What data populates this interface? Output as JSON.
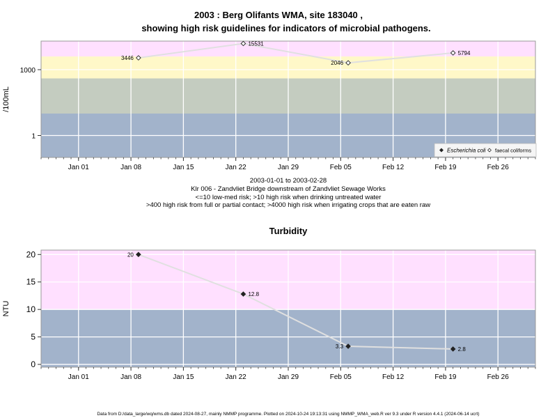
{
  "figure": {
    "title_line1": "2003 : Berg Olifants WMA, site 183040 ,",
    "title_line2": "showing high risk guidelines for indicators of microbial pathogens.",
    "caption_lines": [
      "2003-01-01 to 2003-02-28",
      "Klr 006 - Zandvliet Bridge downstream of Zandvliet Sewage Works",
      "<=10 low-med risk; >10 high risk when drinking untreated water",
      ">400 high risk from full or partial contact; >4000 high risk when irrigating crops that are eaten raw"
    ],
    "footer": "Data from D:/data_large/wq/wms.db dated 2024-08-27, mainly NMMP programme. Plotted on 2024-10-24 19:13:31 using NMMP_WMA_web.R ver 9.3 under R version 4.4.1 (2024-06-14 ucrt)"
  },
  "colors": {
    "pink": "#ffe0ff",
    "yellow": "#fff8c8",
    "grey_green": "#c4ccc0",
    "blue_grey": "#a2b3cb",
    "grid": "#ffffff",
    "line": "#e0e0e0"
  },
  "chart_data": [
    {
      "type": "scatter",
      "title": "2003 : Berg Olifants WMA, site 183040 , showing high risk guidelines for indicators of microbial pathogens.",
      "ylabel": "/100mL",
      "y_scale": "log",
      "ylim": [
        0.1,
        20000
      ],
      "xlim": [
        "2002-12-27",
        "2003-03-03"
      ],
      "x_ticks": [
        "Jan 01",
        "Jan 08",
        "Jan 15",
        "Jan 22",
        "Jan 29",
        "Feb 05",
        "Feb 12",
        "Feb 19",
        "Feb 26"
      ],
      "x_tick_dates": [
        "2003-01-01",
        "2003-01-08",
        "2003-01-15",
        "2003-01-22",
        "2003-01-29",
        "2003-02-05",
        "2003-02-12",
        "2003-02-19",
        "2003-02-26"
      ],
      "y_ticks": [
        1,
        1000
      ],
      "y_tick_labels": [
        "1",
        "1000"
      ],
      "bands": [
        {
          "from": 0.1,
          "to": 10,
          "color": "blue_grey"
        },
        {
          "from": 10,
          "to": 400,
          "color": "grey_green"
        },
        {
          "from": 400,
          "to": 4000,
          "color": "yellow"
        },
        {
          "from": 4000,
          "to": 20000,
          "color": "pink"
        }
      ],
      "legend_position": "bottom-right",
      "legend": [
        "Escherichia coli",
        "faecal coliforms"
      ],
      "series": [
        {
          "name": "faecal coliforms",
          "marker": "open-diamond",
          "x": [
            "2003-01-09",
            "2003-01-23",
            "2003-02-06",
            "2003-02-20"
          ],
          "values": [
            3446,
            15531,
            2046,
            5794
          ],
          "labels": [
            "3446",
            "15531",
            "2046",
            "5794"
          ],
          "label_side": [
            "left",
            "right",
            "left",
            "right"
          ]
        }
      ],
      "grid": true
    },
    {
      "type": "line",
      "title": "Turbidity",
      "ylabel": "NTU",
      "ylim": [
        -0.5,
        20.8
      ],
      "xlim": [
        "2002-12-27",
        "2003-03-03"
      ],
      "x_ticks": [
        "Jan 01",
        "Jan 08",
        "Jan 15",
        "Jan 22",
        "Jan 29",
        "Feb 05",
        "Feb 12",
        "Feb 19",
        "Feb 26"
      ],
      "x_tick_dates": [
        "2003-01-01",
        "2003-01-08",
        "2003-01-15",
        "2003-01-22",
        "2003-01-29",
        "2003-02-05",
        "2003-02-12",
        "2003-02-19",
        "2003-02-26"
      ],
      "y_ticks": [
        0,
        5,
        10,
        15,
        20
      ],
      "y_tick_labels": [
        "0",
        "5",
        "10",
        "15",
        "20"
      ],
      "bands": [
        {
          "from": -0.5,
          "to": 10,
          "color": "blue_grey"
        },
        {
          "from": 10,
          "to": 20.8,
          "color": "pink"
        }
      ],
      "series": [
        {
          "marker": "filled-diamond",
          "x": [
            "2003-01-09",
            "2003-01-23",
            "2003-02-06",
            "2003-02-20"
          ],
          "values": [
            20,
            12.8,
            3.3,
            2.8
          ],
          "labels": [
            "20",
            "12.8",
            "3.3",
            "2.8"
          ],
          "label_side": [
            "left",
            "right",
            "left",
            "right"
          ]
        }
      ],
      "grid": true
    }
  ]
}
